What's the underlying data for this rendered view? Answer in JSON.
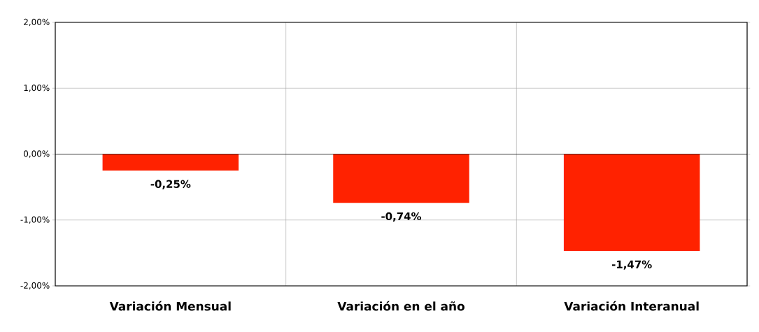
{
  "chart_data": {
    "type": "bar",
    "categories": [
      "Variación Mensual",
      "Variación en el año",
      "Variación Interanual"
    ],
    "values": [
      -0.25,
      -0.74,
      -1.47
    ],
    "value_labels": [
      "-0,25%",
      "-0,74%",
      "-1,47%"
    ],
    "color": "#ff2200",
    "ylim": [
      -2,
      2
    ],
    "yticks": [
      {
        "value": -2,
        "label": "-2,00%"
      },
      {
        "value": -1,
        "label": "-1,00%"
      },
      {
        "value": 0,
        "label": "0,00%"
      },
      {
        "value": 1,
        "label": "1,00%"
      },
      {
        "value": 2,
        "label": "2,00%"
      }
    ],
    "grid": true
  }
}
